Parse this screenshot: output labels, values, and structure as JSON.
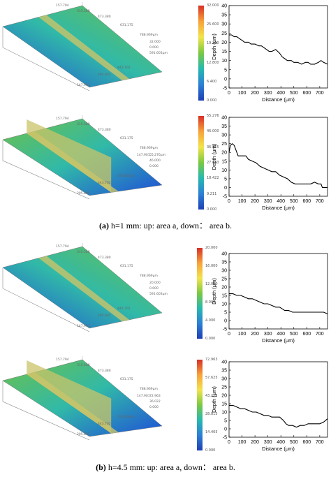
{
  "captions": {
    "a_tag": "(a)",
    "a_text": " h=1 mm: up: area a, down： area b.",
    "b_tag": "(b)",
    "b_text": " h=4.5 mm: up: area a, down： area b."
  },
  "colors": {
    "surface_low": "#1f4fd8",
    "surface_mid": "#31b9a8",
    "surface_high": "#6cc04a",
    "groove": "#c9c46a",
    "line": "#000000"
  },
  "panels": [
    {
      "colorbar_ticks": [
        "32.000",
        "25.600",
        "19.200",
        "12.800",
        "6.400",
        "0.000"
      ],
      "surface_labels": [
        "157.794",
        "315.588",
        "473.380",
        "631.175",
        "788.969μm",
        "32.000",
        "0.000",
        "591.603μm",
        "443.702",
        "295.802",
        "147.901"
      ],
      "chart_data": {
        "type": "line",
        "xlabel": "Distance (μm)",
        "ylabel": "Depth (μm)",
        "xlim": [
          0,
          760
        ],
        "ylim": [
          -5,
          40
        ],
        "xticks": [
          0,
          100,
          200,
          300,
          400,
          500,
          600,
          700
        ],
        "yticks": [
          -5,
          0,
          5,
          10,
          15,
          20,
          25,
          30,
          35,
          40
        ],
        "x": [
          0,
          20,
          40,
          60,
          80,
          100,
          120,
          150,
          170,
          200,
          230,
          250,
          270,
          290,
          310,
          330,
          360,
          390,
          410,
          430,
          450,
          480,
          500,
          530,
          560,
          590,
          610,
          630,
          660,
          690,
          710,
          730,
          760
        ],
        "y": [
          24,
          24,
          23,
          23,
          22,
          21,
          20,
          20,
          19,
          19,
          18,
          18,
          17,
          16,
          15,
          15,
          16,
          14,
          12,
          11,
          10,
          10,
          9,
          9,
          8,
          9,
          9,
          8,
          8,
          9,
          10,
          9,
          8
        ]
      }
    },
    {
      "colorbar_ticks": [
        "55.276",
        "46.000",
        "36.855",
        "27.633",
        "18.422",
        "9.211",
        "0.000"
      ],
      "surface_labels": [
        "157.794",
        "315.588",
        "473.380",
        "631.175",
        "788.969μm",
        "55.276μm",
        "46.000",
        "0.000",
        "591.603μm",
        "443.702",
        "295.802",
        "147.901"
      ],
      "chart_data": {
        "type": "line",
        "xlabel": "Distance (μm)",
        "ylabel": "Depth (μm)",
        "xlim": [
          0,
          760
        ],
        "ylim": [
          -5,
          40
        ],
        "xticks": [
          0,
          100,
          200,
          300,
          400,
          500,
          600,
          700
        ],
        "yticks": [
          -5,
          0,
          5,
          10,
          15,
          20,
          25,
          30,
          35,
          40
        ],
        "x": [
          0,
          10,
          25,
          40,
          55,
          70,
          90,
          110,
          130,
          150,
          180,
          210,
          240,
          270,
          300,
          330,
          360,
          390,
          420,
          450,
          480,
          510,
          540,
          570,
          600,
          630,
          660,
          690,
          710,
          720,
          740,
          760
        ],
        "y": [
          20,
          24,
          25,
          24,
          21,
          18,
          18,
          18,
          18,
          16,
          15,
          14,
          12,
          11,
          10,
          9,
          9,
          7,
          6,
          5,
          3,
          2,
          2,
          2,
          2,
          2,
          3,
          2,
          2,
          0,
          0,
          0
        ]
      }
    },
    {
      "colorbar_ticks": [
        "20.000",
        "16.000",
        "12.000",
        "8.000",
        "4.000",
        "0.000"
      ],
      "surface_labels": [
        "157.794",
        "315.588",
        "473.380",
        "631.175",
        "788.969μm",
        "20.000",
        "0.000",
        "591.603μm",
        "443.702",
        "295.802",
        "147.901"
      ],
      "chart_data": {
        "type": "line",
        "xlabel": "Distance (μm)",
        "ylabel": "Depth (μm)",
        "xlim": [
          0,
          760
        ],
        "ylim": [
          -5,
          40
        ],
        "xticks": [
          0,
          100,
          200,
          300,
          400,
          500,
          600,
          700
        ],
        "yticks": [
          -5,
          0,
          5,
          10,
          15,
          20,
          25,
          30,
          35,
          40
        ],
        "x": [
          0,
          30,
          60,
          90,
          120,
          150,
          180,
          210,
          240,
          270,
          300,
          330,
          360,
          390,
          410,
          430,
          460,
          490,
          520,
          550,
          580,
          610,
          640,
          670,
          700,
          730,
          760
        ],
        "y": [
          16,
          16,
          15,
          15,
          14,
          13,
          13,
          12,
          11,
          10,
          10,
          9,
          8,
          8,
          7,
          6,
          6,
          5,
          5,
          5,
          5,
          5,
          5,
          5,
          5,
          5,
          4
        ]
      }
    },
    {
      "colorbar_ticks": [
        "72.963",
        "57.625",
        "43.222",
        "28.815",
        "14.405",
        "0.000"
      ],
      "surface_labels": [
        "157.794",
        "315.588",
        "473.380",
        "631.175",
        "788.969μm",
        "72.963",
        "36.022",
        "0.000",
        "591.603μm",
        "443.702",
        "295.802",
        "147.901"
      ],
      "chart_data": {
        "type": "line",
        "xlabel": "Distance (μm)",
        "ylabel": "Depth (μm)",
        "xlim": [
          0,
          760
        ],
        "ylim": [
          -5,
          40
        ],
        "xticks": [
          0,
          100,
          200,
          300,
          400,
          500,
          600,
          700
        ],
        "yticks": [
          -5,
          0,
          5,
          10,
          15,
          20,
          25,
          30,
          35,
          40
        ],
        "x": [
          0,
          30,
          60,
          90,
          120,
          150,
          180,
          210,
          240,
          270,
          300,
          330,
          360,
          390,
          420,
          440,
          460,
          490,
          520,
          550,
          580,
          610,
          640,
          670,
          700,
          730,
          760
        ],
        "y": [
          14,
          14,
          13,
          12,
          12,
          11,
          10,
          10,
          9,
          8,
          8,
          7,
          7,
          7,
          5,
          3,
          2,
          2,
          1,
          2,
          2,
          3,
          3,
          3,
          3,
          4,
          6
        ]
      }
    }
  ]
}
